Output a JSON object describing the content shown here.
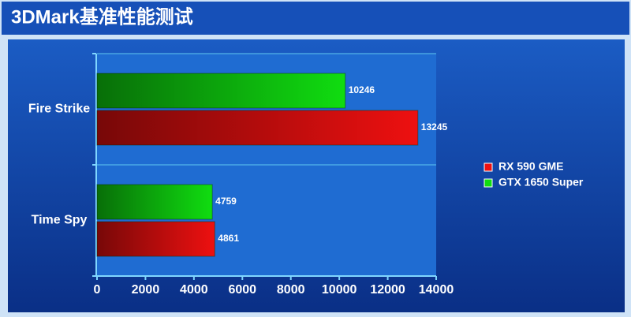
{
  "chart_data": {
    "type": "bar",
    "orientation": "horizontal",
    "title": "3DMark基准性能测试",
    "categories": [
      "Fire Strike",
      "Time Spy"
    ],
    "series": [
      {
        "name": "RX 590 GME",
        "color": "#ee1010",
        "values": [
          13245,
          4861
        ]
      },
      {
        "name": "GTX 1650 Super",
        "color": "#10dd10",
        "values": [
          10246,
          4759
        ]
      }
    ],
    "xlim": [
      0,
      14000
    ],
    "xticks": [
      0,
      2000,
      4000,
      6000,
      8000,
      10000,
      12000,
      14000
    ],
    "grid": true,
    "legend": "right"
  }
}
